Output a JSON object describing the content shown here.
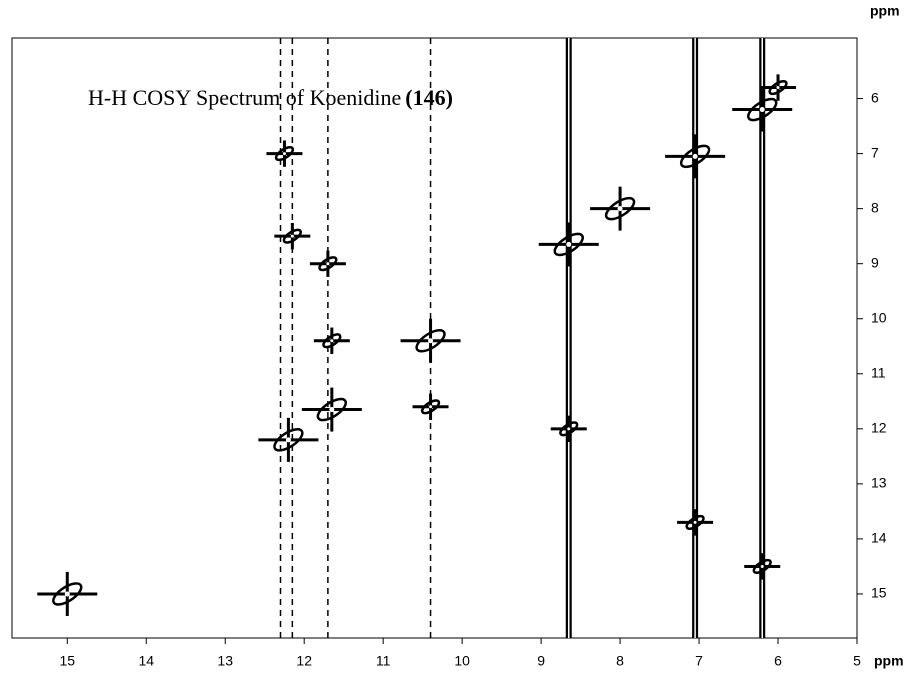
{
  "chart_data": {
    "type": "contour",
    "title": "H-H COSY Spectrum of Koenidine",
    "title_suffix": "(146)",
    "xlabel": "ppm",
    "ylabel": "ppm",
    "xlim": [
      15.7,
      5
    ],
    "ylim": [
      4.9,
      15.8
    ],
    "xticks": [
      15,
      14,
      13,
      12,
      11,
      10,
      9,
      8,
      7,
      6,
      5
    ],
    "yticks": [
      6,
      7,
      8,
      9,
      10,
      11,
      12,
      13,
      14,
      15
    ],
    "color": "#000000",
    "strong_streaks": [
      8.65,
      7.05,
      6.2
    ],
    "weak_streaks": [
      12.3,
      12.15,
      11.7,
      10.4
    ],
    "series": [
      {
        "x": [
          15.0,
          12.2,
          11.65,
          10.4,
          8.65,
          8.0,
          7.05,
          6.2
        ],
        "values": [
          15.0,
          12.2,
          11.65,
          10.4,
          8.65,
          8.0,
          7.05,
          6.2
        ]
      },
      {
        "x": [
          12.25,
          12.15,
          11.7,
          11.65,
          10.4,
          8.65,
          7.05,
          6.2,
          6.0
        ],
        "values": [
          7.0,
          8.5,
          9.0,
          10.4,
          11.6,
          12.0,
          13.7,
          14.5,
          5.8
        ]
      }
    ]
  }
}
